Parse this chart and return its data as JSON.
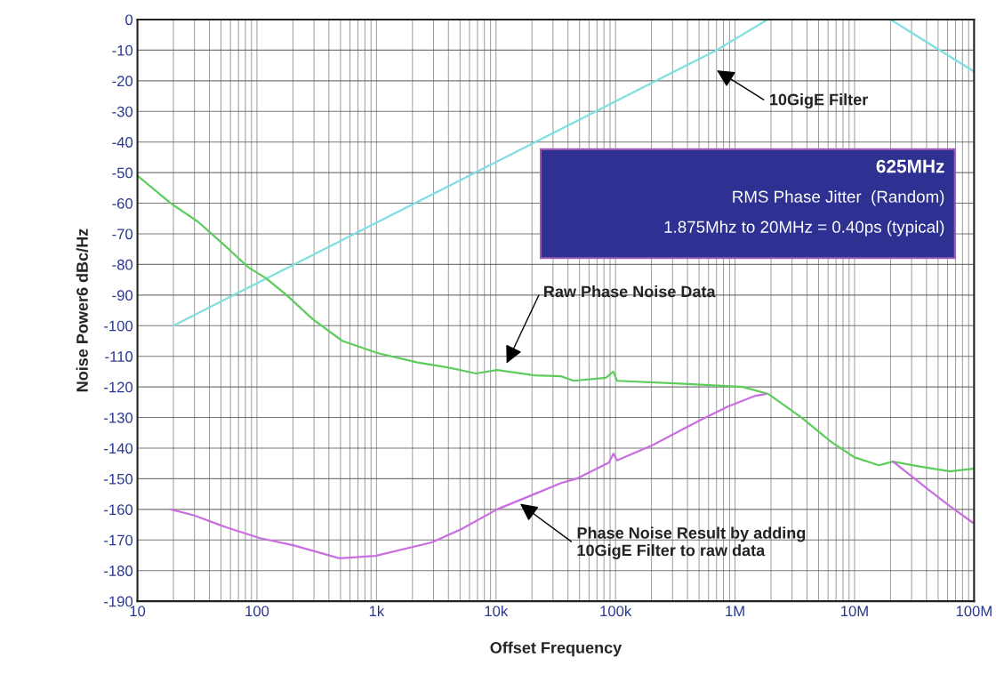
{
  "chart_data": {
    "type": "line",
    "xlabel": "Offset Frequency",
    "ylabel": "Noise Power6 dBc/Hz",
    "log": "x",
    "grid": true,
    "xlim": [
      10,
      100000000
    ],
    "ylim": [
      -190,
      0
    ],
    "xticks": [
      10,
      100,
      {
        "value": 1000,
        "label": "1k"
      },
      {
        "value": 10000,
        "label": "10k"
      },
      {
        "value": 100000,
        "label": "100k"
      },
      {
        "value": 1000000,
        "label": "1M"
      },
      {
        "value": 10000000,
        "label": "10M"
      },
      {
        "value": 100000000,
        "label": "100M"
      }
    ],
    "yticks": [
      0,
      -10,
      -20,
      -30,
      -40,
      -50,
      -60,
      -70,
      -80,
      -90,
      -100,
      -110,
      -120,
      -130,
      -140,
      -150,
      -160,
      -170,
      -180,
      -190
    ],
    "series": [
      {
        "color": "#7fdfe0",
        "x": [
          20,
          700000,
          1875000,
          20000000,
          100000000
        ],
        "values": [
          -100,
          -10,
          0,
          0,
          -17
        ]
      },
      {
        "color": "#5dcc5d",
        "x": [
          10,
          19,
          32,
          51,
          85,
          119,
          177,
          295,
          520,
          1030,
          2200,
          3900,
          6800,
          10200,
          21000,
          35000,
          44600,
          83000,
          96000,
          103000,
          375000,
          1150000,
          1900000,
          3600000,
          6400000,
          10000000,
          16000000,
          21000000,
          35000000,
          63000000,
          98000000
        ],
        "values": [
          -51,
          -60,
          -66,
          -73,
          -81,
          -84.5,
          -90,
          -98,
          -105,
          -109,
          -112,
          -113.6,
          -115.6,
          -114.5,
          -116.2,
          -116.5,
          -118,
          -117,
          -115,
          -118,
          -119,
          -120,
          -122.3,
          -130,
          -138,
          -143,
          -145.6,
          -144.4,
          -146,
          -147.6,
          -146.7
        ]
      },
      {
        "color": "#c86ee0",
        "x": [
          19,
          30,
          53,
          106,
          200,
          490,
          980,
          2900,
          5100,
          10200,
          21000,
          35000,
          47000,
          88000,
          96000,
          103000,
          205000,
          520000,
          870000,
          1450000,
          1800000,
          5000000,
          21000000,
          41000000,
          63000000,
          98000000
        ],
        "values": [
          -160,
          -162,
          -165.6,
          -169.4,
          -171.7,
          -176,
          -175.2,
          -170.8,
          -166.5,
          -160,
          -155,
          -151.4,
          -150,
          -144.7,
          -141.8,
          -144,
          -139,
          -130.7,
          -126.4,
          -123,
          -122.3,
          null,
          -144.4,
          -153.4,
          -159,
          -164.4
        ]
      }
    ],
    "annotations": [
      "625MHz",
      "RMS Phase Jitter  (Random)",
      "1.875Mhz to 20MHz = 0.40ps (typical)",
      "10GigE Filter",
      "Raw Phase Noise Data",
      "Phase Noise Result by adding\n10GigE Filter to raw data"
    ]
  }
}
